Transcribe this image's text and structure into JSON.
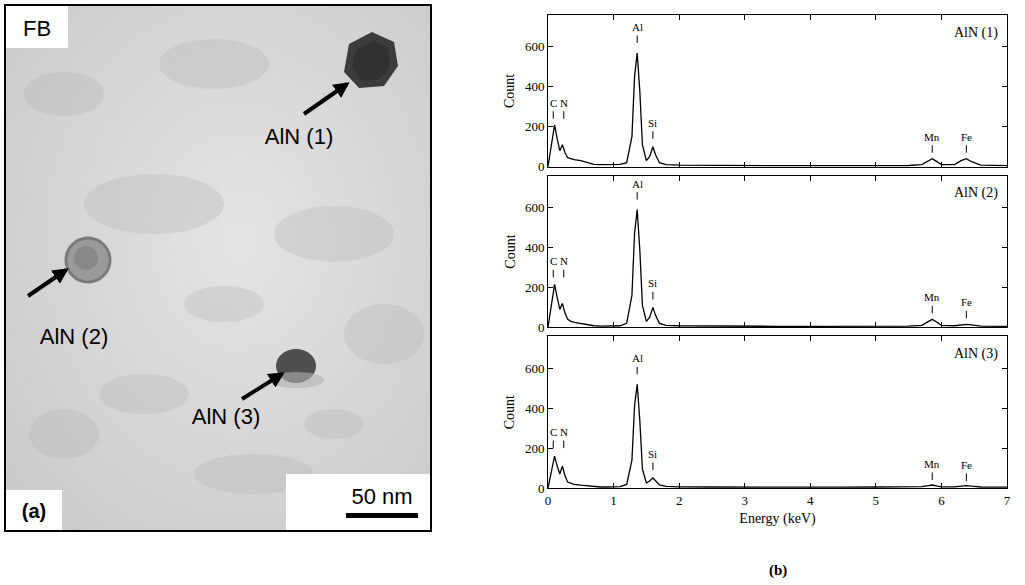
{
  "panel_a": {
    "label": "(a)",
    "sample": "FB",
    "scale_bar": "50 nm",
    "particles": [
      "AlN (1)",
      "AlN (2)",
      "AlN (3)"
    ]
  },
  "panel_b_label": "(b)",
  "chart_data": [
    {
      "type": "line",
      "title": "AlN (1)",
      "ylabel": "Count",
      "color": "#000000",
      "tick_labels": "y",
      "xlim": [
        0,
        7
      ],
      "xticks": [
        0,
        1,
        2,
        3,
        4,
        5,
        6,
        7
      ],
      "ylim": [
        0,
        760
      ],
      "yticks": [
        0,
        200,
        400,
        600
      ],
      "x": [
        0,
        0.05,
        0.1,
        0.14,
        0.18,
        0.22,
        0.26,
        0.3,
        0.35,
        0.4,
        0.5,
        0.6,
        0.7,
        0.8,
        0.9,
        1.0,
        1.1,
        1.2,
        1.28,
        1.32,
        1.36,
        1.4,
        1.44,
        1.5,
        1.55,
        1.6,
        1.64,
        1.7,
        1.8,
        2.0,
        2.5,
        3,
        3.5,
        4,
        4.5,
        5,
        5.5,
        5.7,
        5.8,
        5.86,
        5.92,
        6.0,
        6.2,
        6.3,
        6.38,
        6.46,
        6.6,
        7
      ],
      "values": [
        0,
        100,
        210,
        140,
        80,
        110,
        70,
        45,
        40,
        35,
        30,
        20,
        12,
        10,
        10,
        10,
        12,
        20,
        150,
        450,
        570,
        380,
        110,
        30,
        50,
        100,
        60,
        20,
        10,
        8,
        6,
        5,
        5,
        5,
        5,
        6,
        6,
        10,
        30,
        40,
        28,
        10,
        10,
        30,
        40,
        25,
        8,
        5
      ],
      "annotations": [
        {
          "text": "C",
          "x": 0.08,
          "y": 240
        },
        {
          "text": "N",
          "x": 0.24,
          "y": 240
        },
        {
          "text": "Al",
          "x": 1.36,
          "y": 620
        },
        {
          "text": "Si",
          "x": 1.6,
          "y": 140
        },
        {
          "text": "Mn",
          "x": 5.86,
          "y": 70
        },
        {
          "text": "Fe",
          "x": 6.38,
          "y": 70
        }
      ]
    },
    {
      "type": "line",
      "title": "AlN (2)",
      "ylabel": "Count",
      "color": "#000000",
      "tick_labels": "y",
      "xlim": [
        0,
        7
      ],
      "xticks": [
        0,
        1,
        2,
        3,
        4,
        5,
        6,
        7
      ],
      "ylim": [
        0,
        760
      ],
      "yticks": [
        0,
        200,
        400,
        600
      ],
      "x": [
        0,
        0.05,
        0.1,
        0.14,
        0.18,
        0.22,
        0.26,
        0.3,
        0.35,
        0.4,
        0.5,
        0.6,
        0.7,
        0.8,
        0.9,
        1.0,
        1.1,
        1.2,
        1.28,
        1.32,
        1.36,
        1.4,
        1.44,
        1.5,
        1.55,
        1.6,
        1.64,
        1.7,
        1.8,
        2.0,
        2.5,
        3,
        3.5,
        4,
        4.5,
        5,
        5.5,
        5.7,
        5.8,
        5.86,
        5.92,
        6.0,
        6.2,
        6.3,
        6.38,
        6.46,
        6.6,
        7
      ],
      "values": [
        0,
        110,
        215,
        150,
        90,
        120,
        70,
        40,
        30,
        25,
        20,
        12,
        8,
        6,
        6,
        6,
        8,
        20,
        160,
        470,
        590,
        390,
        110,
        30,
        50,
        100,
        60,
        20,
        10,
        8,
        6,
        5,
        5,
        5,
        5,
        6,
        6,
        10,
        30,
        40,
        28,
        10,
        8,
        12,
        15,
        12,
        6,
        5
      ],
      "annotations": [
        {
          "text": "C",
          "x": 0.08,
          "y": 250
        },
        {
          "text": "N",
          "x": 0.24,
          "y": 250
        },
        {
          "text": "Al",
          "x": 1.36,
          "y": 640
        },
        {
          "text": "Si",
          "x": 1.6,
          "y": 140
        },
        {
          "text": "Mn",
          "x": 5.86,
          "y": 70
        },
        {
          "text": "Fe",
          "x": 6.38,
          "y": 45
        }
      ]
    },
    {
      "type": "line",
      "title": "AlN (3)",
      "xlabel": "Energy (keV)",
      "ylabel": "Count",
      "color": "#000000",
      "xlim": [
        0,
        7
      ],
      "xticks": [
        0,
        1,
        2,
        3,
        4,
        5,
        6,
        7
      ],
      "ylim": [
        0,
        760
      ],
      "yticks": [
        0,
        200,
        400,
        600
      ],
      "x": [
        0,
        0.05,
        0.1,
        0.14,
        0.18,
        0.22,
        0.26,
        0.3,
        0.35,
        0.4,
        0.5,
        0.6,
        0.7,
        0.8,
        0.9,
        1.0,
        1.1,
        1.2,
        1.28,
        1.32,
        1.36,
        1.4,
        1.44,
        1.5,
        1.55,
        1.6,
        1.64,
        1.7,
        1.8,
        2.0,
        2.5,
        3,
        3.5,
        4,
        4.5,
        5,
        5.5,
        5.7,
        5.8,
        5.86,
        5.92,
        6.0,
        6.2,
        6.3,
        6.38,
        6.46,
        6.6,
        7
      ],
      "values": [
        0,
        80,
        160,
        110,
        70,
        110,
        60,
        30,
        22,
        18,
        14,
        10,
        7,
        5,
        5,
        5,
        7,
        18,
        140,
        410,
        520,
        340,
        95,
        25,
        35,
        50,
        35,
        15,
        8,
        6,
        5,
        4,
        4,
        4,
        4,
        5,
        5,
        7,
        12,
        15,
        11,
        6,
        6,
        9,
        12,
        9,
        5,
        4
      ],
      "annotations": [
        {
          "text": "C",
          "x": 0.08,
          "y": 200
        },
        {
          "text": "N",
          "x": 0.24,
          "y": 200
        },
        {
          "text": "Al",
          "x": 1.36,
          "y": 570
        },
        {
          "text": "Si",
          "x": 1.6,
          "y": 90
        },
        {
          "text": "Mn",
          "x": 5.86,
          "y": 40
        },
        {
          "text": "Fe",
          "x": 6.38,
          "y": 35
        }
      ]
    }
  ]
}
